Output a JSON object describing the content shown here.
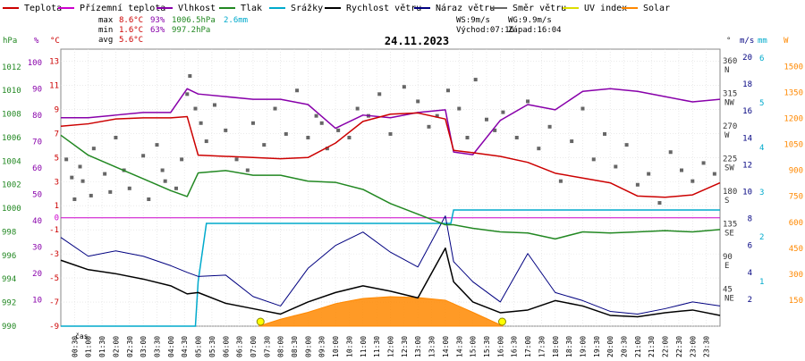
{
  "chart_data": {
    "type": "line",
    "title": "24.11.2023",
    "legend": [
      {
        "name": "Teplota",
        "color": "#cc0000"
      },
      {
        "name": "Přízemní teplota",
        "color": "#cc00cc"
      },
      {
        "name": "Vlhkost",
        "color": "#8800aa"
      },
      {
        "name": "Tlak",
        "color": "#228822"
      },
      {
        "name": "Srážky",
        "color": "#00aacc"
      },
      {
        "name": "Rychlost větru",
        "color": "#000000"
      },
      {
        "name": "Náraz větru",
        "color": "#000080"
      },
      {
        "name": "Směr větru",
        "color": "#666666"
      },
      {
        "name": "UV index",
        "color": "#dddd00"
      },
      {
        "name": "Solar",
        "color": "#ff8800"
      }
    ],
    "stats": {
      "max": {
        "label": "max",
        "temp": "8.6°C",
        "hum": "93%",
        "press": "1006.5hPa",
        "rain": "2.6mm"
      },
      "min": {
        "label": "min",
        "temp": "1.6°C",
        "hum": "63%",
        "press": "997.2hPa"
      },
      "avg": {
        "label": "avg",
        "temp": "5.6°C"
      }
    },
    "info": {
      "ws": "WS:9m/s",
      "wg": "WG:9.9m/s",
      "sunrise": "Východ:07:16",
      "sunset": "Západ:16:04"
    },
    "axes": {
      "press_unit": "hPa",
      "press_ticks": [
        990,
        992,
        994,
        996,
        998,
        1000,
        1002,
        1004,
        1006,
        1008,
        1010,
        1012
      ],
      "hum_unit": "%",
      "hum_ticks": [
        10,
        20,
        30,
        40,
        50,
        60,
        70,
        80,
        90,
        100
      ],
      "temp_unit": "°C",
      "temp_ticks": [
        -9,
        -7,
        -5,
        -3,
        -1,
        1,
        3,
        5,
        7,
        9,
        11,
        13
      ],
      "temp_zero": "0",
      "dir_unit": "°",
      "dir_ticks": [
        {
          "v": 45,
          "l": "NE"
        },
        {
          "v": 90,
          "l": "E"
        },
        {
          "v": 135,
          "l": "SE"
        },
        {
          "v": 180,
          "l": "S"
        },
        {
          "v": 225,
          "l": "SW"
        },
        {
          "v": 270,
          "l": "W"
        },
        {
          "v": 315,
          "l": "NW"
        },
        {
          "v": 360,
          "l": "N"
        }
      ],
      "wind_unit": "m/s",
      "wind_ticks": [
        2,
        4,
        6,
        8,
        10,
        12,
        14,
        16,
        18,
        20
      ],
      "rain_unit": "mm",
      "rain_ticks": [
        1,
        2,
        3,
        4,
        5,
        6
      ],
      "solar_unit": "W",
      "solar_ticks": [
        150,
        300,
        450,
        600,
        750,
        900,
        1050,
        1200,
        1350,
        1500
      ],
      "x_label": "čas",
      "x_ticks": [
        "00:30",
        "01:00",
        "01:30",
        "02:00",
        "02:30",
        "03:00",
        "03:30",
        "04:00",
        "04:30",
        "05:00",
        "05:30",
        "06:00",
        "06:30",
        "07:00",
        "07:30",
        "08:00",
        "08:30",
        "09:00",
        "09:30",
        "10:00",
        "10:30",
        "11:00",
        "11:30",
        "12:00",
        "12:30",
        "13:00",
        "13:30",
        "14:00",
        "14:30",
        "15:00",
        "15:30",
        "16:00",
        "16:30",
        "17:00",
        "17:30",
        "18:00",
        "18:30",
        "19:00",
        "19:30",
        "20:00",
        "20:30",
        "21:00",
        "21:30",
        "22:00",
        "22:30",
        "23:00",
        "23:30"
      ]
    },
    "hours": [
      0,
      1,
      2,
      3,
      4,
      4.6,
      5,
      6,
      7,
      8,
      9,
      10,
      11,
      12,
      13,
      14,
      14.3,
      15,
      16,
      17,
      18,
      19,
      20,
      21,
      22,
      23,
      24
    ],
    "temperature": [
      7.6,
      7.8,
      8.2,
      8.3,
      8.3,
      8.4,
      5.2,
      5.1,
      5.0,
      4.9,
      5.0,
      6.2,
      8.0,
      8.6,
      8.7,
      8.2,
      5.6,
      5.4,
      5.1,
      4.6,
      3.7,
      3.3,
      2.9,
      1.8,
      1.7,
      1.9,
      2.9
    ],
    "humidity": [
      79,
      79,
      80,
      81,
      81,
      90,
      88,
      87,
      86,
      86,
      84,
      75,
      80,
      79,
      81,
      82,
      66,
      65,
      78,
      84,
      82,
      89,
      90,
      89,
      87,
      85,
      86
    ],
    "pressure": [
      1006.2,
      1004.5,
      1003.5,
      1002.5,
      1001.5,
      1001.0,
      1003.0,
      1003.2,
      1002.8,
      1002.8,
      1002.3,
      1002.2,
      1001.6,
      1000.4,
      999.5,
      998.6,
      998.6,
      998.3,
      998.0,
      997.9,
      997.4,
      998.0,
      997.9,
      998.0,
      998.1,
      998.0,
      998.2
    ],
    "wind_speed": [
      4.9,
      4.2,
      3.9,
      3.5,
      3.0,
      2.4,
      2.5,
      1.7,
      1.3,
      0.9,
      1.8,
      2.5,
      3.0,
      2.6,
      2.1,
      5.8,
      3.3,
      1.8,
      1.0,
      1.2,
      1.9,
      1.5,
      0.8,
      0.7,
      1.0,
      1.2,
      0.8
    ],
    "wind_gust": [
      6.6,
      5.2,
      5.6,
      5.2,
      4.5,
      4.0,
      3.7,
      3.8,
      2.2,
      1.5,
      4.3,
      6.0,
      7.0,
      5.5,
      4.4,
      8.2,
      4.8,
      3.3,
      1.8,
      5.4,
      2.5,
      1.9,
      1.1,
      0.9,
      1.3,
      1.8,
      1.5
    ],
    "rain_hours": [
      0,
      4.9,
      5.0,
      5.3,
      14.2,
      14.3,
      24
    ],
    "rain": [
      0,
      0,
      1.0,
      2.3,
      2.3,
      2.6,
      2.6
    ],
    "solar_hours": [
      7.2,
      8,
      9,
      10,
      11,
      12,
      13,
      14,
      15,
      16.1
    ],
    "solar": [
      0,
      40,
      80,
      130,
      160,
      170,
      165,
      150,
      80,
      0
    ],
    "wind_dir_hours": [
      0.2,
      0.4,
      0.5,
      0.7,
      0.8,
      1.1,
      1.2,
      1.6,
      1.8,
      2.0,
      2.3,
      2.5,
      3.0,
      3.2,
      3.5,
      3.7,
      3.8,
      4.2,
      4.4,
      4.6,
      4.7,
      4.9,
      5.1,
      5.3,
      5.6,
      6.0,
      6.4,
      6.8,
      7.0,
      7.4,
      7.8,
      8.2,
      8.6,
      9.0,
      9.3,
      9.5,
      9.7,
      10.1,
      10.5,
      10.8,
      11.2,
      11.6,
      12.0,
      12.5,
      13.0,
      13.4,
      13.7,
      14.1,
      14.5,
      14.8,
      15.1,
      15.5,
      15.8,
      16.1,
      16.6,
      17.0,
      17.4,
      17.8,
      18.2,
      18.6,
      19.0,
      19.4,
      19.8,
      20.2,
      20.6,
      21.0,
      21.4,
      21.8,
      22.2,
      22.6,
      23.0,
      23.4,
      23.8
    ],
    "wind_dir": [
      230,
      205,
      175,
      220,
      200,
      180,
      245,
      210,
      185,
      260,
      215,
      190,
      235,
      175,
      250,
      215,
      200,
      190,
      230,
      320,
      345,
      300,
      280,
      255,
      305,
      270,
      230,
      215,
      280,
      250,
      300,
      265,
      325,
      260,
      290,
      280,
      245,
      270,
      260,
      300,
      290,
      320,
      265,
      330,
      310,
      275,
      290,
      325,
      300,
      260,
      340,
      285,
      270,
      295,
      260,
      310,
      245,
      275,
      200,
      255,
      300,
      230,
      265,
      220,
      250,
      195,
      210,
      170,
      240,
      215,
      200,
      225,
      210
    ]
  }
}
